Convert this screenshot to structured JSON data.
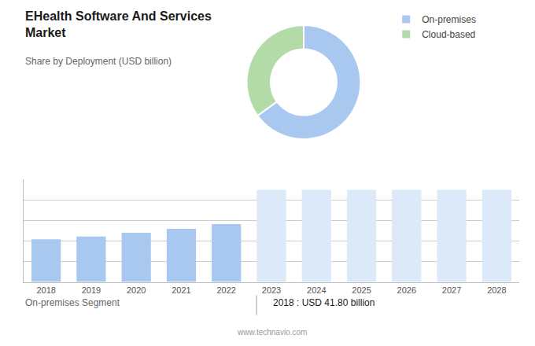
{
  "chart_data": [
    {
      "type": "pie",
      "title": "EHealth Software And Services\nMarket",
      "subtitle": "Share by Deployment (USD billion)",
      "categories": [
        "On-premises",
        "Cloud-based"
      ],
      "values": [
        65,
        35
      ],
      "colors": [
        "#a8c8f0",
        "#b2dba8"
      ],
      "legend": "upper right"
    },
    {
      "type": "bar",
      "categories": [
        "2018",
        "2019",
        "2020",
        "2021",
        "2022",
        "2023",
        "2024",
        "2025",
        "2026",
        "2027",
        "2028"
      ],
      "values": [
        41.8,
        44.5,
        48.0,
        52.0,
        56.5,
        90.0,
        90.0,
        90.0,
        90.0,
        90.0,
        90.0
      ],
      "colors": [
        "#a8c8f0",
        "#a8c8f0",
        "#a8c8f0",
        "#a8c8f0",
        "#a8c8f0",
        "#dce9f8",
        "#dce9f8",
        "#dce9f8",
        "#dce9f8",
        "#dce9f8",
        "#dce9f8"
      ],
      "ylim": [
        0,
        100
      ],
      "yticks": [
        20,
        40,
        60,
        80,
        100
      ],
      "grid": true,
      "tick_labels": "x",
      "annotations": [
        "On-premises Segment",
        "2018 : USD 41.80 billion",
        "www.technavio.com"
      ]
    }
  ]
}
